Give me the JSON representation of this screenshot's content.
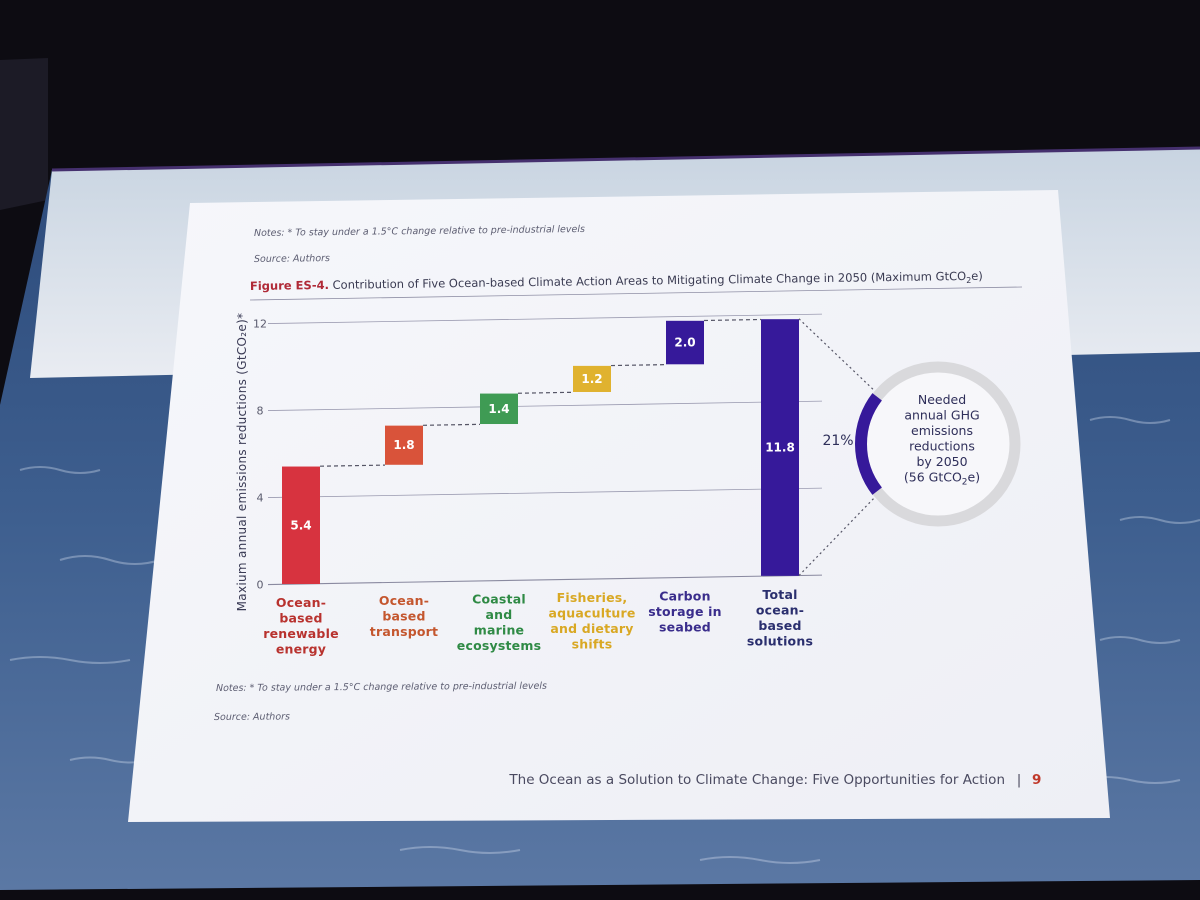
{
  "slide": {
    "notes_top": "Notes: * To stay under a 1.5°C change relative to pre-industrial levels",
    "source_top": "Source: Authors",
    "figure_label": "Figure ES-4.",
    "figure_title": " Contribution of Five Ocean-based Climate Action Areas to Mitigating Climate Change in 2050 (Maximum GtCO",
    "figure_title_sub": "2",
    "figure_title_end": "e)",
    "notes_bottom": "Notes: * To stay under a 1.5°C change relative to pre-industrial levels",
    "source_bottom": "Source: Authors",
    "footer_text": "The Ocean as a Solution to Climate Change: Five Opportunities for Action",
    "footer_sep": "|",
    "footer_page": "9"
  },
  "chart_data": {
    "type": "bar",
    "subtype": "waterfall",
    "ylabel": "Maxium annual emissions reductions (GtCO₂e)*",
    "ylim": [
      0,
      12
    ],
    "yticks": [
      "0",
      "4",
      "8",
      "12"
    ],
    "grid": true,
    "categories": [
      [
        "Ocean-",
        "based",
        "renewable",
        "energy"
      ],
      [
        "Ocean-",
        "based",
        "transport"
      ],
      [
        "Coastal",
        "and",
        "marine",
        "ecosystems"
      ],
      [
        "Fisheries,",
        "aquaculture",
        "and dietary",
        "shifts"
      ],
      [
        "Carbon",
        "storage in",
        "seabed"
      ],
      [
        "Total",
        "ocean-",
        "based",
        "solutions"
      ]
    ],
    "values": [
      5.4,
      1.8,
      1.4,
      1.2,
      2.0,
      11.8
    ],
    "value_labels": [
      "5.4",
      "1.8",
      "1.4",
      "1.2",
      "2.0",
      "11.8"
    ],
    "is_total": [
      false,
      false,
      false,
      false,
      false,
      true
    ],
    "colors": [
      "#d7333f",
      "#d9533a",
      "#3f9b54",
      "#e0b22f",
      "#36199a",
      "#36199a"
    ],
    "label_colors": [
      "#b8322e",
      "#c4562e",
      "#2f8a45",
      "#d9a824",
      "#3a2d8c",
      "#2a2f6e"
    ],
    "connector": "dashed",
    "callout": {
      "percent": "21%",
      "fraction": 0.21,
      "text": [
        "Needed",
        "annual GHG",
        "emissions",
        "reductions",
        "by 2050",
        "(56 GtCO",
        "e)"
      ],
      "ring_color": "#36199a",
      "ring_bg": "#d9d9dc"
    }
  }
}
